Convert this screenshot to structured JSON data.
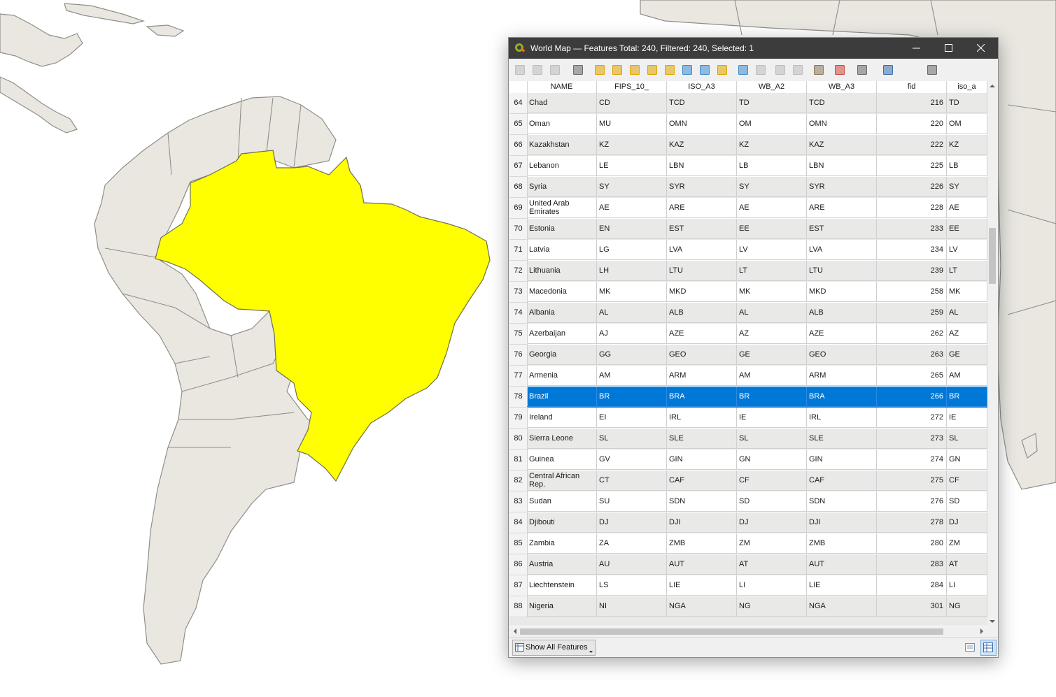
{
  "window": {
    "title": "World Map — Features Total: 240, Filtered: 240, Selected: 1"
  },
  "colors": {
    "land": "#e9e7e0",
    "selected_feature": "#ffff00",
    "selected_row": "#0078d7"
  },
  "toolbar": {
    "icons": [
      "toggle-editing-icon",
      "multi-edit-icon",
      "save-edits-icon",
      "reload-table-icon",
      "add-feature-icon",
      "delete-features-icon",
      "cut-icon",
      "copy-icon",
      "paste-icon",
      "select-by-expression-icon",
      "select-all-icon",
      "invert-selection-icon",
      "deselect-all-icon",
      "filter-select-icon",
      "move-selection-to-top-icon",
      "pan-map-to-selected-icon",
      "zoom-map-to-selected-icon",
      "field-calculator-icon",
      "conditional-formatting-icon",
      "actions-icon",
      "dock-icon"
    ]
  },
  "table": {
    "columns": [
      "NAME",
      "FIPS_10_",
      "ISO_A3",
      "WB_A2",
      "WB_A3",
      "fid",
      "iso_a"
    ],
    "rows": [
      {
        "n": "64",
        "name": "Chad",
        "fips": "CD",
        "iso": "TCD",
        "wb2": "TD",
        "wb3": "TCD",
        "fid": "216",
        "isoa": "TD"
      },
      {
        "n": "65",
        "name": "Oman",
        "fips": "MU",
        "iso": "OMN",
        "wb2": "OM",
        "wb3": "OMN",
        "fid": "220",
        "isoa": "OM"
      },
      {
        "n": "66",
        "name": "Kazakhstan",
        "fips": "KZ",
        "iso": "KAZ",
        "wb2": "KZ",
        "wb3": "KAZ",
        "fid": "222",
        "isoa": "KZ"
      },
      {
        "n": "67",
        "name": "Lebanon",
        "fips": "LE",
        "iso": "LBN",
        "wb2": "LB",
        "wb3": "LBN",
        "fid": "225",
        "isoa": "LB"
      },
      {
        "n": "68",
        "name": "Syria",
        "fips": "SY",
        "iso": "SYR",
        "wb2": "SY",
        "wb3": "SYR",
        "fid": "226",
        "isoa": "SY"
      },
      {
        "n": "69",
        "name": "United Arab Emirates",
        "fips": "AE",
        "iso": "ARE",
        "wb2": "AE",
        "wb3": "ARE",
        "fid": "228",
        "isoa": "AE"
      },
      {
        "n": "70",
        "name": "Estonia",
        "fips": "EN",
        "iso": "EST",
        "wb2": "EE",
        "wb3": "EST",
        "fid": "233",
        "isoa": "EE"
      },
      {
        "n": "71",
        "name": "Latvia",
        "fips": "LG",
        "iso": "LVA",
        "wb2": "LV",
        "wb3": "LVA",
        "fid": "234",
        "isoa": "LV"
      },
      {
        "n": "72",
        "name": "Lithuania",
        "fips": "LH",
        "iso": "LTU",
        "wb2": "LT",
        "wb3": "LTU",
        "fid": "239",
        "isoa": "LT"
      },
      {
        "n": "73",
        "name": "Macedonia",
        "fips": "MK",
        "iso": "MKD",
        "wb2": "MK",
        "wb3": "MKD",
        "fid": "258",
        "isoa": "MK"
      },
      {
        "n": "74",
        "name": "Albania",
        "fips": "AL",
        "iso": "ALB",
        "wb2": "AL",
        "wb3": "ALB",
        "fid": "259",
        "isoa": "AL"
      },
      {
        "n": "75",
        "name": "Azerbaijan",
        "fips": "AJ",
        "iso": "AZE",
        "wb2": "AZ",
        "wb3": "AZE",
        "fid": "262",
        "isoa": "AZ"
      },
      {
        "n": "76",
        "name": "Georgia",
        "fips": "GG",
        "iso": "GEO",
        "wb2": "GE",
        "wb3": "GEO",
        "fid": "263",
        "isoa": "GE"
      },
      {
        "n": "77",
        "name": "Armenia",
        "fips": "AM",
        "iso": "ARM",
        "wb2": "AM",
        "wb3": "ARM",
        "fid": "265",
        "isoa": "AM"
      },
      {
        "n": "78",
        "name": "Brazil",
        "fips": "BR",
        "iso": "BRA",
        "wb2": "BR",
        "wb3": "BRA",
        "fid": "266",
        "isoa": "BR",
        "selected": true
      },
      {
        "n": "79",
        "name": "Ireland",
        "fips": "EI",
        "iso": "IRL",
        "wb2": "IE",
        "wb3": "IRL",
        "fid": "272",
        "isoa": "IE"
      },
      {
        "n": "80",
        "name": "Sierra Leone",
        "fips": "SL",
        "iso": "SLE",
        "wb2": "SL",
        "wb3": "SLE",
        "fid": "273",
        "isoa": "SL"
      },
      {
        "n": "81",
        "name": "Guinea",
        "fips": "GV",
        "iso": "GIN",
        "wb2": "GN",
        "wb3": "GIN",
        "fid": "274",
        "isoa": "GN"
      },
      {
        "n": "82",
        "name": "Central African Rep.",
        "fips": "CT",
        "iso": "CAF",
        "wb2": "CF",
        "wb3": "CAF",
        "fid": "275",
        "isoa": "CF"
      },
      {
        "n": "83",
        "name": "Sudan",
        "fips": "SU",
        "iso": "SDN",
        "wb2": "SD",
        "wb3": "SDN",
        "fid": "276",
        "isoa": "SD"
      },
      {
        "n": "84",
        "name": "Djibouti",
        "fips": "DJ",
        "iso": "DJI",
        "wb2": "DJ",
        "wb3": "DJI",
        "fid": "278",
        "isoa": "DJ"
      },
      {
        "n": "85",
        "name": "Zambia",
        "fips": "ZA",
        "iso": "ZMB",
        "wb2": "ZM",
        "wb3": "ZMB",
        "fid": "280",
        "isoa": "ZM"
      },
      {
        "n": "86",
        "name": "Austria",
        "fips": "AU",
        "iso": "AUT",
        "wb2": "AT",
        "wb3": "AUT",
        "fid": "283",
        "isoa": "AT"
      },
      {
        "n": "87",
        "name": "Liechtenstein",
        "fips": "LS",
        "iso": "LIE",
        "wb2": "LI",
        "wb3": "LIE",
        "fid": "284",
        "isoa": "LI"
      },
      {
        "n": "88",
        "name": "Nigeria",
        "fips": "NI",
        "iso": "NGA",
        "wb2": "NG",
        "wb3": "NGA",
        "fid": "301",
        "isoa": "NG"
      }
    ]
  },
  "bottom": {
    "show_all_label": "Show All Features"
  }
}
